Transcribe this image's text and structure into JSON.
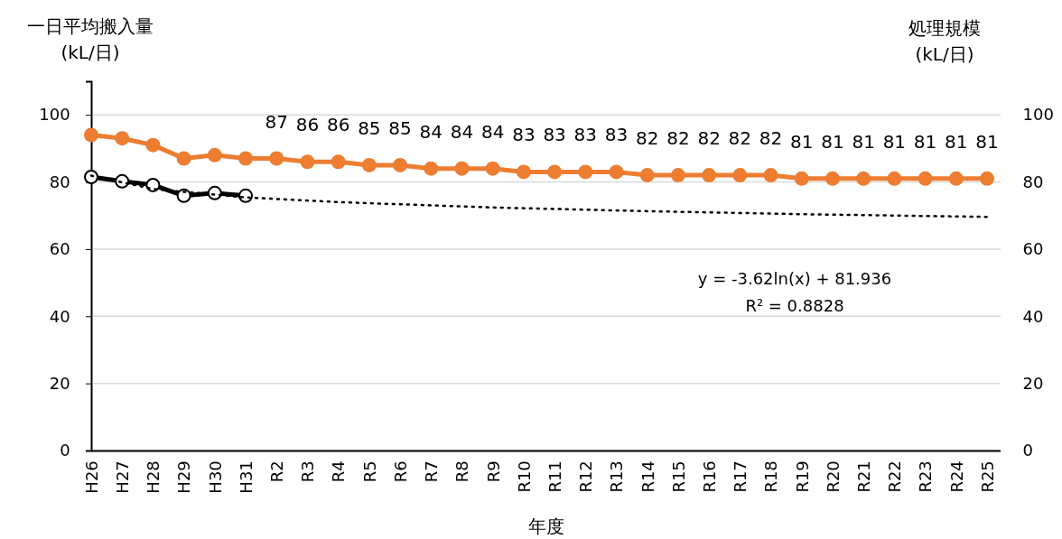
{
  "chart_data": {
    "type": "line",
    "ylabel": "一日平均搬入量\n(kL/日)",
    "y2label": "処理規模\n(kL/日)",
    "xlabel": "年度",
    "categories": [
      "H26",
      "H27",
      "H28",
      "H29",
      "H30",
      "H31",
      "R2",
      "R3",
      "R4",
      "R5",
      "R6",
      "R7",
      "R8",
      "R9",
      "R10",
      "R11",
      "R12",
      "R13",
      "R14",
      "R15",
      "R16",
      "R17",
      "R18",
      "R19",
      "R20",
      "R21",
      "R22",
      "R23",
      "R24",
      "R25"
    ],
    "ylim": [
      0,
      110
    ],
    "yticks": [
      0,
      20,
      40,
      60,
      80,
      100
    ],
    "y2lim": [
      0,
      110
    ],
    "y2ticks": [
      0,
      20,
      40,
      60,
      80,
      100
    ],
    "grid": "y",
    "marker": "circle",
    "series": [
      {
        "color": "#ed7d31",
        "axis": "y2",
        "values": [
          94,
          93,
          91,
          87,
          88,
          87,
          87,
          86,
          86,
          85,
          85,
          84,
          84,
          84,
          83,
          83,
          83,
          83,
          82,
          82,
          82,
          82,
          82,
          81,
          81,
          81,
          81,
          81,
          81,
          81
        ],
        "value_labels": [
          null,
          null,
          null,
          null,
          null,
          null,
          "87",
          "86",
          "86",
          "85",
          "85",
          "84",
          "84",
          "84",
          "83",
          "83",
          "83",
          "83",
          "82",
          "82",
          "82",
          "82",
          "82",
          "81",
          "81",
          "81",
          "81",
          "81",
          "81",
          "81"
        ]
      },
      {
        "color": "#000000",
        "values": [
          81.5,
          80.2,
          79.1,
          75.9,
          76.7,
          75.9,
          null,
          null,
          null,
          null,
          null,
          null,
          null,
          null,
          null,
          null,
          null,
          null,
          null,
          null,
          null,
          null,
          null,
          null,
          null,
          null,
          null,
          null,
          null,
          null
        ]
      },
      {
        "type": "line",
        "color": "#000000",
        "marker": "none",
        "line_style": "dotted",
        "x": [
          "H26",
          "H28",
          "H31",
          "R4",
          "R9",
          "R14",
          "R19",
          "R25"
        ],
        "values": [
          81.9,
          77.9,
          75.4,
          74.0,
          72.4,
          71.3,
          70.4,
          69.6
        ]
      }
    ],
    "annotations": [
      "y = -3.62ln(x) + 81.936",
      "R² = 0.8828"
    ]
  }
}
